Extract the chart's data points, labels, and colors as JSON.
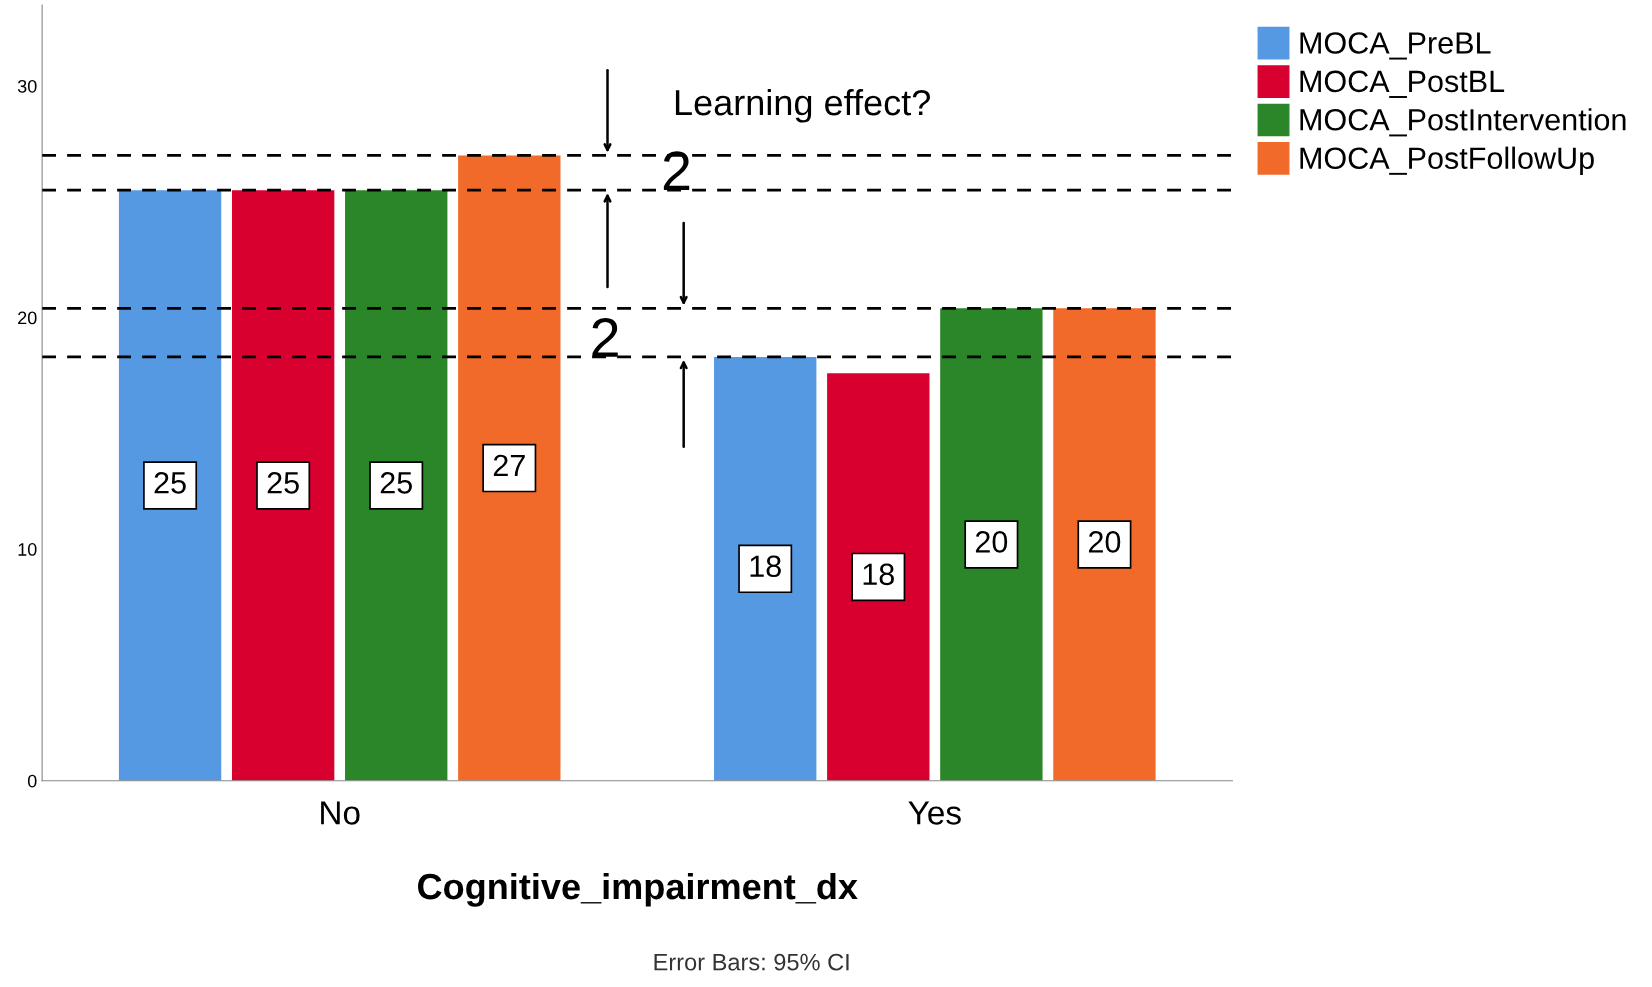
{
  "chart_data": {
    "type": "bar",
    "xlabel": "Cognitive_impairment_dx",
    "categories": [
      "No",
      "Yes"
    ],
    "series": [
      {
        "name": "MOCA_PreBL",
        "color": "#5599e3",
        "values": [
          25.5,
          18.3
        ],
        "value_labels": [
          "25",
          "18"
        ]
      },
      {
        "name": "MOCA_PostBL",
        "color": "#d7002f",
        "values": [
          25.5,
          17.6
        ],
        "value_labels": [
          "25",
          "18"
        ]
      },
      {
        "name": "MOCA_PostIntervention",
        "color": "#2a8629",
        "values": [
          25.5,
          20.4
        ],
        "value_labels": [
          "25",
          "20"
        ]
      },
      {
        "name": "MOCA_PostFollowUp",
        "color": "#f26a2a",
        "values": [
          27.0,
          20.4
        ],
        "value_labels": [
          "27",
          "20"
        ]
      }
    ],
    "ylim": [
      0,
      33.5
    ],
    "yticks": [
      0,
      10,
      20,
      30
    ],
    "grid": false,
    "legend": "top right",
    "ref_lines": [
      {
        "axis": "y",
        "value": 27.0,
        "color": "#000000",
        "line_style": "dashed"
      },
      {
        "axis": "y",
        "value": 25.5,
        "color": "#000000",
        "line_style": "dashed"
      },
      {
        "axis": "y",
        "value": 20.4,
        "color": "#000000",
        "line_style": "dashed"
      },
      {
        "axis": "y",
        "value": 18.3,
        "color": "#000000",
        "line_style": "dashed"
      }
    ],
    "annotations": [
      "Learning effect?",
      "2",
      "2",
      "Error Bars: 95% CI"
    ]
  }
}
